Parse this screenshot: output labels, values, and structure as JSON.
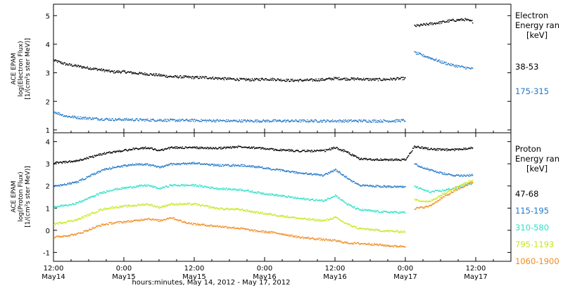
{
  "chart_data": [
    {
      "type": "scatter",
      "title": "",
      "ylabel_lines": [
        "ACE EPAM",
        "log(Electron Flux)",
        "[1/(cm²s ster MeV)]"
      ],
      "ylim": [
        0.9,
        5.4
      ],
      "yticks": [
        1,
        2,
        3,
        4,
        5
      ],
      "grid": false,
      "legend_position": "right",
      "legend_title": [
        "Electron",
        "Energy ran",
        "[keV]"
      ],
      "series": [
        {
          "name": "38-53",
          "color": "#000000",
          "points": [
            [
              0,
              3.45
            ],
            [
              2,
              3.32
            ],
            [
              4,
              3.25
            ],
            [
              6,
              3.18
            ],
            [
              8,
              3.12
            ],
            [
              10,
              3.05
            ],
            [
              12,
              3.05
            ],
            [
              14,
              3.0
            ],
            [
              16,
              2.97
            ],
            [
              18,
              2.93
            ],
            [
              20,
              2.88
            ],
            [
              22,
              2.87
            ],
            [
              24,
              2.85
            ],
            [
              26,
              2.85
            ],
            [
              28,
              2.82
            ],
            [
              30,
              2.8
            ],
            [
              32,
              2.78
            ],
            [
              34,
              2.77
            ],
            [
              36,
              2.8
            ],
            [
              38,
              2.78
            ],
            [
              40,
              2.75
            ],
            [
              42,
              2.75
            ],
            [
              44,
              2.76
            ],
            [
              46,
              2.78
            ],
            [
              48,
              2.82
            ],
            [
              50,
              2.8
            ],
            [
              52,
              2.8
            ],
            [
              54,
              2.78
            ],
            [
              56,
              2.78
            ],
            [
              58,
              2.8
            ],
            [
              60,
              2.82
            ],
            [
              61.5,
              4.65
            ],
            [
              64,
              4.72
            ],
            [
              66,
              4.78
            ],
            [
              68,
              4.85
            ],
            [
              70,
              4.88
            ],
            [
              71.5,
              4.8
            ]
          ]
        },
        {
          "name": "175-315",
          "color": "#1f77c9",
          "points": [
            [
              0,
              1.65
            ],
            [
              2,
              1.5
            ],
            [
              4,
              1.45
            ],
            [
              6,
              1.42
            ],
            [
              8,
              1.4
            ],
            [
              10,
              1.38
            ],
            [
              12,
              1.38
            ],
            [
              14,
              1.37
            ],
            [
              16,
              1.36
            ],
            [
              18,
              1.36
            ],
            [
              20,
              1.35
            ],
            [
              22,
              1.35
            ],
            [
              24,
              1.35
            ],
            [
              26,
              1.34
            ],
            [
              28,
              1.34
            ],
            [
              30,
              1.33
            ],
            [
              32,
              1.33
            ],
            [
              34,
              1.33
            ],
            [
              36,
              1.33
            ],
            [
              38,
              1.33
            ],
            [
              40,
              1.33
            ],
            [
              42,
              1.33
            ],
            [
              44,
              1.33
            ],
            [
              46,
              1.33
            ],
            [
              48,
              1.33
            ],
            [
              50,
              1.33
            ],
            [
              52,
              1.33
            ],
            [
              54,
              1.33
            ],
            [
              56,
              1.33
            ],
            [
              58,
              1.33
            ],
            [
              60,
              1.35
            ],
            [
              61.5,
              3.72
            ],
            [
              64,
              3.55
            ],
            [
              66,
              3.4
            ],
            [
              68,
              3.28
            ],
            [
              70,
              3.2
            ],
            [
              71.5,
              3.15
            ]
          ]
        }
      ]
    },
    {
      "type": "scatter",
      "title": "",
      "xlabel": "hours:minutes, May 14, 2012 - May 17, 2012",
      "ylabel_lines": [
        "ACE EPAM",
        "log(Proton Flux)",
        "[1/(cm²s ster MeV)]"
      ],
      "ylim": [
        -1.4,
        4.4
      ],
      "yticks": [
        -1,
        0,
        1,
        2,
        3,
        4
      ],
      "xlim": [
        0,
        78
      ],
      "xticks": [
        {
          "x": 0,
          "label1": "12:00",
          "label2": "May14"
        },
        {
          "x": 12,
          "label1": "0:00",
          "label2": "May15"
        },
        {
          "x": 24,
          "label1": "12:00",
          "label2": "May15"
        },
        {
          "x": 36,
          "label1": "0:00",
          "label2": "May16"
        },
        {
          "x": 48,
          "label1": "12:00",
          "label2": "May16"
        },
        {
          "x": 60,
          "label1": "0:00",
          "label2": "May17"
        },
        {
          "x": 72,
          "label1": "12:00",
          "label2": "May17"
        }
      ],
      "grid": false,
      "legend_position": "right",
      "legend_title": [
        "Proton",
        "Energy ran",
        "[keV]"
      ],
      "series": [
        {
          "name": "47-68",
          "color": "#000000",
          "points": [
            [
              0,
              3.05
            ],
            [
              4,
              3.15
            ],
            [
              8,
              3.45
            ],
            [
              10,
              3.55
            ],
            [
              14,
              3.7
            ],
            [
              16,
              3.75
            ],
            [
              18,
              3.62
            ],
            [
              20,
              3.75
            ],
            [
              24,
              3.75
            ],
            [
              28,
              3.72
            ],
            [
              32,
              3.8
            ],
            [
              34,
              3.75
            ],
            [
              38,
              3.65
            ],
            [
              42,
              3.6
            ],
            [
              46,
              3.6
            ],
            [
              48,
              3.75
            ],
            [
              50,
              3.55
            ],
            [
              52,
              3.25
            ],
            [
              56,
              3.2
            ],
            [
              60,
              3.2
            ],
            [
              61.5,
              3.8
            ],
            [
              64,
              3.7
            ],
            [
              66,
              3.65
            ],
            [
              68,
              3.65
            ],
            [
              71.5,
              3.75
            ]
          ]
        },
        {
          "name": "115-195",
          "color": "#1f77c9",
          "points": [
            [
              0,
              2.0
            ],
            [
              4,
              2.2
            ],
            [
              8,
              2.7
            ],
            [
              10,
              2.85
            ],
            [
              14,
              3.0
            ],
            [
              16,
              3.0
            ],
            [
              18,
              2.85
            ],
            [
              20,
              3.0
            ],
            [
              24,
              3.05
            ],
            [
              28,
              2.95
            ],
            [
              32,
              2.95
            ],
            [
              34,
              2.9
            ],
            [
              38,
              2.75
            ],
            [
              42,
              2.6
            ],
            [
              46,
              2.5
            ],
            [
              48,
              2.75
            ],
            [
              50,
              2.4
            ],
            [
              52,
              2.05
            ],
            [
              56,
              2.0
            ],
            [
              60,
              2.0
            ],
            [
              61.5,
              3.0
            ],
            [
              64,
              2.75
            ],
            [
              66,
              2.6
            ],
            [
              68,
              2.5
            ],
            [
              71.5,
              2.5
            ]
          ]
        },
        {
          "name": "310-580",
          "color": "#2ee0c8",
          "points": [
            [
              0,
              1.05
            ],
            [
              4,
              1.25
            ],
            [
              8,
              1.7
            ],
            [
              10,
              1.85
            ],
            [
              14,
              2.0
            ],
            [
              16,
              2.05
            ],
            [
              18,
              1.9
            ],
            [
              20,
              2.05
            ],
            [
              24,
              2.05
            ],
            [
              28,
              1.9
            ],
            [
              32,
              1.85
            ],
            [
              34,
              1.75
            ],
            [
              38,
              1.6
            ],
            [
              42,
              1.45
            ],
            [
              46,
              1.35
            ],
            [
              48,
              1.6
            ],
            [
              50,
              1.2
            ],
            [
              52,
              0.95
            ],
            [
              56,
              0.85
            ],
            [
              60,
              0.82
            ],
            [
              61.5,
              2.0
            ],
            [
              64,
              1.75
            ],
            [
              66,
              1.8
            ],
            [
              68,
              1.9
            ],
            [
              71.5,
              2.15
            ]
          ]
        },
        {
          "name": "795-1193",
          "color": "#c8e620",
          "points": [
            [
              0,
              0.3
            ],
            [
              4,
              0.5
            ],
            [
              8,
              0.95
            ],
            [
              10,
              1.05
            ],
            [
              14,
              1.15
            ],
            [
              16,
              1.2
            ],
            [
              18,
              1.05
            ],
            [
              20,
              1.2
            ],
            [
              24,
              1.2
            ],
            [
              28,
              1.0
            ],
            [
              32,
              0.95
            ],
            [
              34,
              0.85
            ],
            [
              38,
              0.7
            ],
            [
              42,
              0.55
            ],
            [
              46,
              0.45
            ],
            [
              48,
              0.6
            ],
            [
              50,
              0.3
            ],
            [
              52,
              0.1
            ],
            [
              56,
              0.0
            ],
            [
              60,
              -0.05
            ],
            [
              61.5,
              1.4
            ],
            [
              64,
              1.3
            ],
            [
              66,
              1.6
            ],
            [
              68,
              1.9
            ],
            [
              71.5,
              2.3
            ]
          ]
        },
        {
          "name": "1060-1900",
          "color": "#f08c20",
          "points": [
            [
              0,
              -0.3
            ],
            [
              4,
              -0.15
            ],
            [
              8,
              0.25
            ],
            [
              10,
              0.35
            ],
            [
              14,
              0.45
            ],
            [
              16,
              0.55
            ],
            [
              18,
              0.45
            ],
            [
              20,
              0.6
            ],
            [
              22,
              0.4
            ],
            [
              24,
              0.3
            ],
            [
              28,
              0.2
            ],
            [
              32,
              0.1
            ],
            [
              34,
              0.0
            ],
            [
              38,
              -0.1
            ],
            [
              42,
              -0.3
            ],
            [
              46,
              -0.4
            ],
            [
              48,
              -0.45
            ],
            [
              50,
              -0.55
            ],
            [
              54,
              -0.6
            ],
            [
              58,
              -0.7
            ],
            [
              60,
              -0.7
            ],
            [
              61.5,
              1.0
            ],
            [
              64,
              1.1
            ],
            [
              66,
              1.45
            ],
            [
              68,
              1.75
            ],
            [
              71.5,
              2.2
            ]
          ]
        }
      ]
    }
  ]
}
